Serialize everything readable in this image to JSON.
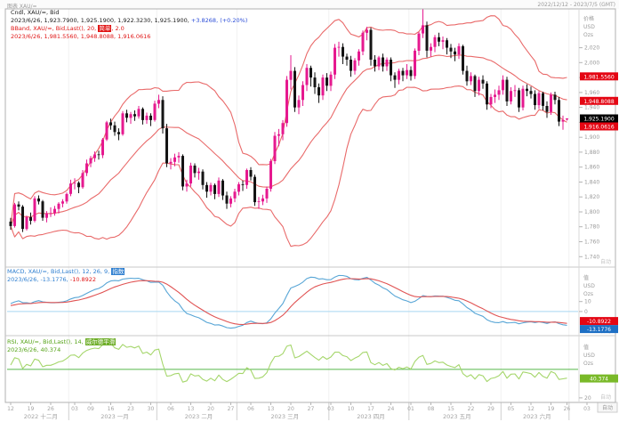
{
  "window": {
    "title_left": "图表 XAU/=",
    "title_right": "2022/12/12 - 2023/7/5 (GMT)"
  },
  "legends": {
    "price": {
      "line1": "Cndl, XAU/=, Bid",
      "line2": "2023/6/26, 1,923.7900, 1,925.1900, 1,922.3230, 1,925.1900,",
      "change": "+3.8268, (+0.20%)",
      "line3_prefix": "BBand, XAU/=, Bid,Last(), 20, ",
      "line3_param": "简单",
      "line3_suffix": ", 2.0",
      "line4": "2023/6/26, 1,981.5560, 1,948.8088, 1,916.0616"
    },
    "macd": {
      "line1_prefix": "MACD, XAU/=, Bid,Last(), 12, 26, 9, ",
      "line1_param": "指数",
      "line2": "2023/6/26, -13.1776,",
      "line2_signal": "-10.8922"
    },
    "rsi": {
      "line1_prefix": "RSI, XAU/=, Bid,Last(), 14, ",
      "line1_param": "威尔德平滑",
      "line2": "2023/6/26, 40.374"
    }
  },
  "axes": {
    "price": {
      "header": [
        "价格",
        "USD",
        "Ozs"
      ],
      "auto": "自动",
      "ticks": [
        "2,020",
        "2,000",
        "1,980",
        "1,960",
        "1,940",
        "1,920",
        "1,900",
        "1,880",
        "1,860",
        "1,840",
        "1,820",
        "1,800",
        "1,780",
        "1,760",
        "1,740"
      ],
      "badges": [
        {
          "text": "1,981.5560",
          "value": 1981.556,
          "type": "band"
        },
        {
          "text": "1,948.8088",
          "value": 1948.8088,
          "type": "band"
        },
        {
          "text": "1,916.0616",
          "value": 1916.0616,
          "type": "band"
        },
        {
          "text": "1,925.1900",
          "value": 1925.19,
          "type": "last"
        }
      ]
    },
    "macd": {
      "header": [
        "值",
        "USD",
        "Ozs"
      ],
      "auto": "自动",
      "ticks": [
        10,
        0
      ],
      "badges": [
        {
          "text": "-10.8922",
          "value": -10.8922,
          "type": "signal"
        },
        {
          "text": "-13.1776",
          "value": -13.1776,
          "type": "macd"
        }
      ]
    },
    "rsi": {
      "header": [
        "值",
        "USD",
        "Ozs"
      ],
      "auto": "自动",
      "ticks": [
        20
      ],
      "badges": [
        {
          "text": "40.374",
          "value": 40.374,
          "type": "rsi"
        }
      ]
    },
    "x": {
      "auto": "自动",
      "months": [
        {
          "label": "2022 十二月",
          "start": 0,
          "end": 15,
          "days": [
            [
              "12",
              0
            ],
            [
              "19",
              5
            ],
            [
              "26",
              10
            ]
          ]
        },
        {
          "label": "2023 一月",
          "start": 15,
          "end": 37,
          "days": [
            [
              "03",
              16
            ],
            [
              "09",
              20
            ],
            [
              "16",
              25
            ],
            [
              "23",
              30
            ],
            [
              "30",
              35
            ]
          ]
        },
        {
          "label": "2023 二月",
          "start": 37,
          "end": 57,
          "days": [
            [
              "06",
              40
            ],
            [
              "13",
              45
            ],
            [
              "20",
              50
            ],
            [
              "27",
              55
            ]
          ]
        },
        {
          "label": "2023 三月",
          "start": 57,
          "end": 80,
          "days": [
            [
              "06",
              60
            ],
            [
              "13",
              65
            ],
            [
              "20",
              70
            ],
            [
              "27",
              75
            ]
          ]
        },
        {
          "label": "2023 四月",
          "start": 80,
          "end": 100,
          "days": [
            [
              "03",
              80
            ],
            [
              "10",
              85
            ],
            [
              "17",
              90
            ],
            [
              "24",
              95
            ]
          ]
        },
        {
          "label": "2023 五月",
          "start": 100,
          "end": 123,
          "days": [
            [
              "01",
              100
            ],
            [
              "08",
              105
            ],
            [
              "15",
              110
            ],
            [
              "22",
              115
            ],
            [
              "29",
              120
            ]
          ]
        },
        {
          "label": "2023 六月",
          "start": 123,
          "end": 140,
          "days": [
            [
              "05",
              125
            ],
            [
              "12",
              130
            ],
            [
              "19",
              135
            ],
            [
              "26",
              139
            ]
          ]
        },
        {
          "label": "",
          "start": 140,
          "end": 147,
          "days": [
            [
              "03",
              144
            ]
          ]
        }
      ]
    }
  },
  "colors": {
    "up": "#e6198f",
    "down": "#141414",
    "bband": "#e96a6a",
    "macd": "#58a6d6",
    "signal": "#e05353",
    "zero_line": "#a8d8f0",
    "rsi": "#a5d66b",
    "rsi_mid": "#57b84a",
    "badge_red": "#e40613",
    "badge_black": "#000000",
    "badge_blue": "#1d6fc4",
    "badge_green": "#79b928",
    "grid": "#f1f1f1",
    "axis_text": "#9b9b9b",
    "date_text": "#a3a3a3"
  },
  "chart_data": {
    "type": "candlestick",
    "symbol": "XAU/=",
    "period": "daily",
    "date_range": "2022/12/12 - 2023/7/5",
    "price_ylim": [
      1726,
      2072
    ],
    "indicators": {
      "bband": {
        "period": 20,
        "method": "简单",
        "mult": 2
      },
      "macd": {
        "fast": 12,
        "slow": 26,
        "signal": 9,
        "method": "指数"
      },
      "rsi": {
        "period": 14,
        "method": "威尔德平滑"
      },
      "last_values": {
        "open": 1923.79,
        "high": 1925.19,
        "low": 1922.323,
        "close": 1925.19,
        "change": 3.8268,
        "change_pct": 0.2,
        "bband_upper": 1981.556,
        "bband_middle": 1948.8088,
        "bband_lower": 1916.0616,
        "macd": -13.1776,
        "macd_signal": -10.8922,
        "rsi": 40.374
      }
    },
    "candles": [
      [
        1787,
        1792,
        1776,
        1781
      ],
      [
        1781,
        1812,
        1779,
        1810
      ],
      [
        1810,
        1814,
        1802,
        1807
      ],
      [
        1807,
        1809,
        1773,
        1777
      ],
      [
        1777,
        1795,
        1775,
        1793
      ],
      [
        1793,
        1799,
        1783,
        1788
      ],
      [
        1788,
        1821,
        1786,
        1818
      ],
      [
        1818,
        1822,
        1810,
        1814
      ],
      [
        1814,
        1816,
        1788,
        1792
      ],
      [
        1792,
        1801,
        1786,
        1798
      ],
      [
        1798,
        1806,
        1793,
        1798
      ],
      [
        1798,
        1808,
        1795,
        1804
      ],
      [
        1804,
        1813,
        1798,
        1811
      ],
      [
        1811,
        1817,
        1806,
        1814
      ],
      [
        1814,
        1826,
        1811,
        1824
      ],
      [
        1824,
        1843,
        1821,
        1838
      ],
      [
        1838,
        1845,
        1830,
        1839
      ],
      [
        1839,
        1841,
        1825,
        1833
      ],
      [
        1833,
        1856,
        1831,
        1852
      ],
      [
        1852,
        1870,
        1848,
        1865
      ],
      [
        1865,
        1875,
        1860,
        1872
      ],
      [
        1872,
        1881,
        1867,
        1877
      ],
      [
        1877,
        1882,
        1870,
        1876
      ],
      [
        1876,
        1899,
        1872,
        1897
      ],
      [
        1897,
        1922,
        1895,
        1920
      ],
      [
        1920,
        1925,
        1910,
        1916
      ],
      [
        1916,
        1921,
        1902,
        1907
      ],
      [
        1907,
        1912,
        1896,
        1904
      ],
      [
        1904,
        1935,
        1902,
        1932
      ],
      [
        1932,
        1937,
        1920,
        1926
      ],
      [
        1926,
        1934,
        1918,
        1931
      ],
      [
        1931,
        1936,
        1922,
        1928
      ],
      [
        1928,
        1942,
        1925,
        1938
      ],
      [
        1938,
        1940,
        1917,
        1923
      ],
      [
        1923,
        1933,
        1918,
        1929
      ],
      [
        1929,
        1932,
        1915,
        1923
      ],
      [
        1923,
        1949,
        1921,
        1945
      ],
      [
        1945,
        1957,
        1939,
        1950
      ],
      [
        1950,
        1955,
        1905,
        1912
      ],
      [
        1912,
        1918,
        1860,
        1865
      ],
      [
        1865,
        1872,
        1857,
        1867
      ],
      [
        1867,
        1878,
        1861,
        1873
      ],
      [
        1873,
        1880,
        1866,
        1875
      ],
      [
        1875,
        1877,
        1829,
        1834
      ],
      [
        1834,
        1843,
        1827,
        1838
      ],
      [
        1838,
        1866,
        1834,
        1862
      ],
      [
        1862,
        1865,
        1846,
        1852
      ],
      [
        1852,
        1859,
        1843,
        1854
      ],
      [
        1854,
        1857,
        1830,
        1836
      ],
      [
        1836,
        1840,
        1819,
        1827
      ],
      [
        1827,
        1839,
        1822,
        1836
      ],
      [
        1836,
        1838,
        1817,
        1824
      ],
      [
        1824,
        1846,
        1820,
        1842
      ],
      [
        1842,
        1844,
        1816,
        1822
      ],
      [
        1822,
        1827,
        1804,
        1811
      ],
      [
        1811,
        1821,
        1806,
        1818
      ],
      [
        1818,
        1831,
        1813,
        1827
      ],
      [
        1827,
        1840,
        1822,
        1837
      ],
      [
        1837,
        1842,
        1828,
        1836
      ],
      [
        1836,
        1858,
        1831,
        1856
      ],
      [
        1856,
        1860,
        1842,
        1847
      ],
      [
        1847,
        1850,
        1808,
        1813
      ],
      [
        1813,
        1820,
        1804,
        1814
      ],
      [
        1814,
        1823,
        1809,
        1818
      ],
      [
        1818,
        1834,
        1812,
        1831
      ],
      [
        1831,
        1871,
        1827,
        1868
      ],
      [
        1868,
        1907,
        1864,
        1902
      ],
      [
        1902,
        1911,
        1888,
        1904
      ],
      [
        1904,
        1923,
        1896,
        1919
      ],
      [
        1919,
        1982,
        1914,
        1977
      ],
      [
        1977,
        2010,
        1964,
        1989
      ],
      [
        1989,
        1994,
        1934,
        1940
      ],
      [
        1940,
        1956,
        1931,
        1950
      ],
      [
        1950,
        1975,
        1942,
        1970
      ],
      [
        1970,
        1998,
        1962,
        1993
      ],
      [
        1993,
        1996,
        1968,
        1980
      ],
      [
        1980,
        1987,
        1958,
        1967
      ],
      [
        1967,
        1972,
        1946,
        1956
      ],
      [
        1956,
        1984,
        1950,
        1980
      ],
      [
        1980,
        1986,
        1962,
        1969
      ],
      [
        1969,
        1988,
        1962,
        1984
      ],
      [
        1984,
        2025,
        1978,
        2020
      ],
      [
        2020,
        2028,
        2008,
        2021
      ],
      [
        2021,
        2026,
        1998,
        2008
      ],
      [
        2008,
        2012,
        1996,
        2004
      ],
      [
        2004,
        2009,
        1981,
        1989
      ],
      [
        1989,
        2006,
        1984,
        2003
      ],
      [
        2003,
        2018,
        1996,
        2015
      ],
      [
        2015,
        2043,
        2010,
        2040
      ],
      [
        2040,
        2048,
        2030,
        2044
      ],
      [
        2044,
        2047,
        1996,
        2004
      ],
      [
        2004,
        2010,
        1988,
        1995
      ],
      [
        1995,
        2009,
        1990,
        2007
      ],
      [
        2007,
        2012,
        1988,
        1995
      ],
      [
        1995,
        2007,
        1989,
        2004
      ],
      [
        2004,
        2007,
        1975,
        1983
      ],
      [
        1983,
        1987,
        1966,
        1977
      ],
      [
        1977,
        1992,
        1971,
        1989
      ],
      [
        1989,
        1993,
        1975,
        1983
      ],
      [
        1983,
        1998,
        1978,
        1990
      ],
      [
        1990,
        1995,
        1976,
        1982
      ],
      [
        1982,
        2019,
        1978,
        2016
      ],
      [
        2016,
        2041,
        2010,
        2039
      ],
      [
        2039,
        2072,
        2033,
        2050
      ],
      [
        2050,
        2055,
        2007,
        2016
      ],
      [
        2016,
        2026,
        2008,
        2021
      ],
      [
        2021,
        2037,
        2014,
        2034
      ],
      [
        2034,
        2040,
        2022,
        2028
      ],
      [
        2028,
        2035,
        2018,
        2030
      ],
      [
        2030,
        2033,
        2011,
        2020
      ],
      [
        2020,
        2025,
        2006,
        2015
      ],
      [
        2015,
        2020,
        2002,
        2011
      ],
      [
        2011,
        2026,
        2005,
        2022
      ],
      [
        2022,
        2024,
        1984,
        1989
      ],
      [
        1989,
        1996,
        1969,
        1975
      ],
      [
        1975,
        1987,
        1970,
        1982
      ],
      [
        1982,
        1984,
        1954,
        1962
      ],
      [
        1962,
        1981,
        1956,
        1977
      ],
      [
        1977,
        1983,
        1965,
        1972
      ],
      [
        1972,
        1975,
        1937,
        1944
      ],
      [
        1944,
        1958,
        1939,
        1954
      ],
      [
        1954,
        1964,
        1946,
        1957
      ],
      [
        1957,
        1969,
        1950,
        1963
      ],
      [
        1963,
        1983,
        1957,
        1977
      ],
      [
        1977,
        1981,
        1942,
        1948
      ],
      [
        1948,
        1967,
        1944,
        1962
      ],
      [
        1962,
        1970,
        1954,
        1963
      ],
      [
        1963,
        1966,
        1934,
        1940
      ],
      [
        1940,
        1969,
        1936,
        1965
      ],
      [
        1965,
        1971,
        1955,
        1962
      ],
      [
        1962,
        1968,
        1952,
        1958
      ],
      [
        1958,
        1963,
        1937,
        1943
      ],
      [
        1943,
        1962,
        1938,
        1959
      ],
      [
        1959,
        1961,
        1936,
        1942
      ],
      [
        1942,
        1948,
        1926,
        1934
      ],
      [
        1934,
        1960,
        1930,
        1957
      ],
      [
        1957,
        1961,
        1944,
        1950
      ],
      [
        1950,
        1954,
        1915,
        1921
      ],
      [
        1921,
        1929,
        1910,
        1923
      ],
      [
        1923.8,
        1925.2,
        1922.3,
        1925.2
      ]
    ]
  }
}
